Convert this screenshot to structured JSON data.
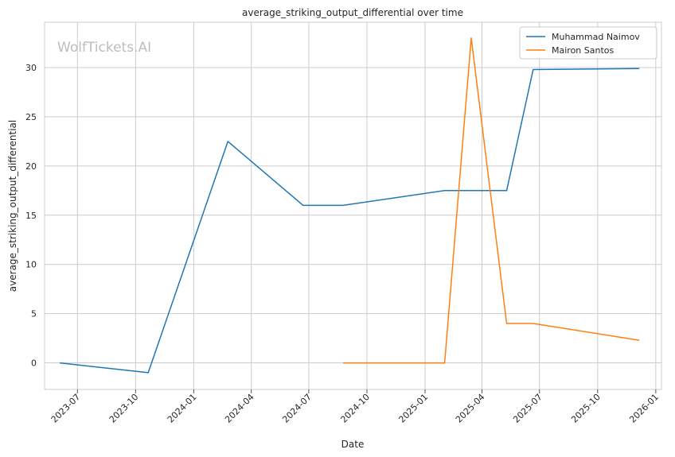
{
  "chart_data": {
    "type": "line",
    "title": "average_striking_output_differential over time",
    "xlabel": "Date",
    "ylabel": "average_striking_output_differential",
    "watermark": "WolfTickets.AI",
    "grid": true,
    "legend_position": "top-right",
    "x_ticks": [
      "2023-07",
      "2023-10",
      "2024-01",
      "2024-04",
      "2024-07",
      "2024-10",
      "2025-01",
      "2025-04",
      "2025-07",
      "2025-10",
      "2026-01"
    ],
    "y_ticks": [
      0,
      5,
      10,
      15,
      20,
      25,
      30
    ],
    "xlim": [
      "2023-05-10",
      "2026-01-10"
    ],
    "ylim": [
      -2.7,
      34.6
    ],
    "series": [
      {
        "name": "Muhammad Naimov",
        "color": "#1f77b4",
        "points": [
          {
            "x": "2023-06-03",
            "y": 0.0
          },
          {
            "x": "2023-10-21",
            "y": -1.0
          },
          {
            "x": "2024-02-24",
            "y": 22.5
          },
          {
            "x": "2024-06-22",
            "y": 16.0
          },
          {
            "x": "2024-08-24",
            "y": 16.0
          },
          {
            "x": "2025-02-01",
            "y": 17.5
          },
          {
            "x": "2025-05-10",
            "y": 17.5
          },
          {
            "x": "2025-06-21",
            "y": 29.8
          },
          {
            "x": "2025-12-06",
            "y": 29.9
          }
        ]
      },
      {
        "name": "Mairon Santos",
        "color": "#ff7f0e",
        "points": [
          {
            "x": "2024-08-24",
            "y": 0.0
          },
          {
            "x": "2025-02-01",
            "y": 0.0
          },
          {
            "x": "2025-03-15",
            "y": 33.0
          },
          {
            "x": "2025-05-10",
            "y": 4.0
          },
          {
            "x": "2025-06-21",
            "y": 4.0
          },
          {
            "x": "2025-12-06",
            "y": 2.3
          }
        ]
      }
    ]
  }
}
